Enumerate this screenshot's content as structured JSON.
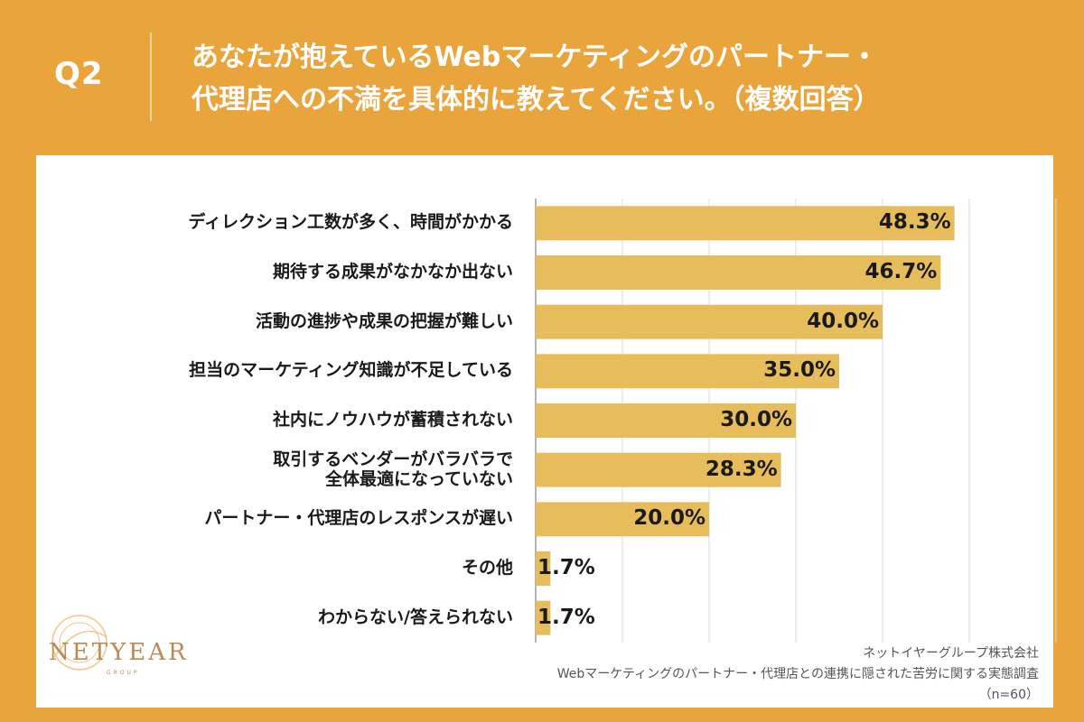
{
  "header": {
    "q_label": "Q2",
    "title_line1": "あなたが抱えているWebマーケティングのパートナー・",
    "title_line2": "代理店への不満を具体的に教えてください。（複数回答）"
  },
  "chart_data": {
    "type": "bar",
    "orientation": "horizontal",
    "categories": [
      [
        "ディレクション工数が多く、時間がかかる"
      ],
      [
        "期待する成果がなかなか出ない"
      ],
      [
        "活動の進捗や成果の把握が難しい"
      ],
      [
        "担当のマーケティング知識が不足している"
      ],
      [
        "社内にノウハウが蓄積されない"
      ],
      [
        "取引するベンダーがバラバラで",
        "全体最適になっていない"
      ],
      [
        "パートナー・代理店のレスポンスが遅い"
      ],
      [
        "その他"
      ],
      [
        "わからない/答えられない"
      ]
    ],
    "values": [
      48.3,
      46.7,
      40.0,
      35.0,
      30.0,
      28.3,
      20.0,
      1.7,
      1.7
    ],
    "value_labels": [
      "48.3%",
      "46.7%",
      "40.0%",
      "35.0%",
      "30.0%",
      "28.3%",
      "20.0%",
      "1.7%",
      "1.7%"
    ],
    "xlim": [
      0,
      60
    ],
    "grid": true,
    "bar_color": "#E7BD5B",
    "grid_color": "#d9d9d9"
  },
  "logo": {
    "name": "NETYEAR",
    "sub": "GROUP"
  },
  "source": {
    "company": "ネットイヤーグループ株式会社",
    "survey": "Webマーケティングのパートナー・代理店との連携に隠された苦労に関する実態調査",
    "n": "（n=60）"
  },
  "colors": {
    "background": "#EAA43C",
    "panel": "#ffffff",
    "text": "#1a1a1a"
  }
}
